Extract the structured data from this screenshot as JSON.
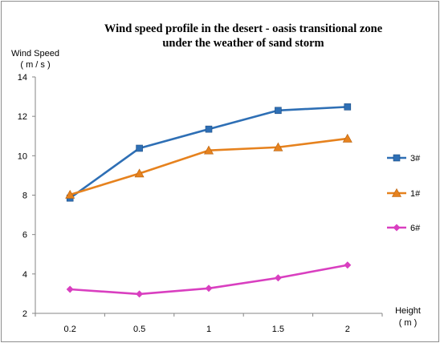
{
  "chart_data": {
    "type": "line",
    "title_line1": "Wind  speed profile  in  the desert - oasis transitional  zone",
    "title_line2": "under  the weather  of  sand storm",
    "ylabel_line1": "Wind Speed",
    "ylabel_line2": "( m / s )",
    "xlabel_line1": "Height",
    "xlabel_line2": "( m )",
    "categories": [
      "0.2",
      "0.5",
      "1",
      "1.5",
      "2"
    ],
    "ylim": [
      2,
      14
    ],
    "yticks": [
      "2",
      "4",
      "6",
      "8",
      "10",
      "12",
      "14"
    ],
    "grid": false,
    "legend_position": "right",
    "series": [
      {
        "name": "3#",
        "color": "#2e6fb5",
        "marker": "square",
        "values": [
          7.85,
          10.38,
          11.35,
          12.3,
          12.48
        ]
      },
      {
        "name": "1#",
        "color": "#e6821e",
        "marker": "triangle",
        "values": [
          8.02,
          9.1,
          10.27,
          10.43,
          10.87
        ]
      },
      {
        "name": "6#",
        "color": "#d93fc0",
        "marker": "diamond",
        "values": [
          3.22,
          2.98,
          3.27,
          3.8,
          4.45
        ]
      }
    ]
  }
}
